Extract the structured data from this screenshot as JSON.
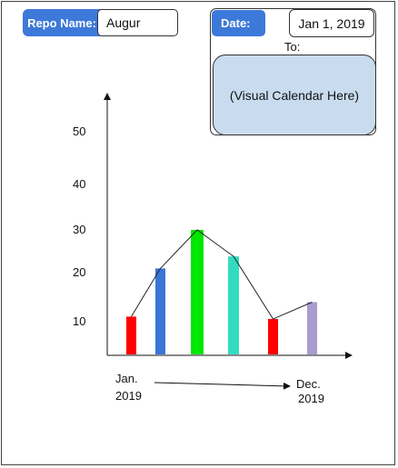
{
  "repo": {
    "label": "Repo Name:",
    "value": "Augur"
  },
  "date": {
    "label": "Date:",
    "from": "Jan 1, 2019",
    "to_label": "To:",
    "calendar_placeholder": "(Visual Calendar Here)"
  },
  "chart_data": {
    "type": "bar",
    "y_ticks": [
      "10",
      "20",
      "30",
      "40",
      "50"
    ],
    "values": [
      12,
      22,
      30,
      24.5,
      11.5,
      15
    ],
    "colors": [
      "#ff0000",
      "#3b75d6",
      "#00e600",
      "#34dcbf",
      "#ff0000",
      "#a99ad0"
    ],
    "x_start": {
      "line1": "Jan.",
      "line2": "2019"
    },
    "x_end": {
      "line1": "Dec.",
      "line2": "2019"
    }
  }
}
